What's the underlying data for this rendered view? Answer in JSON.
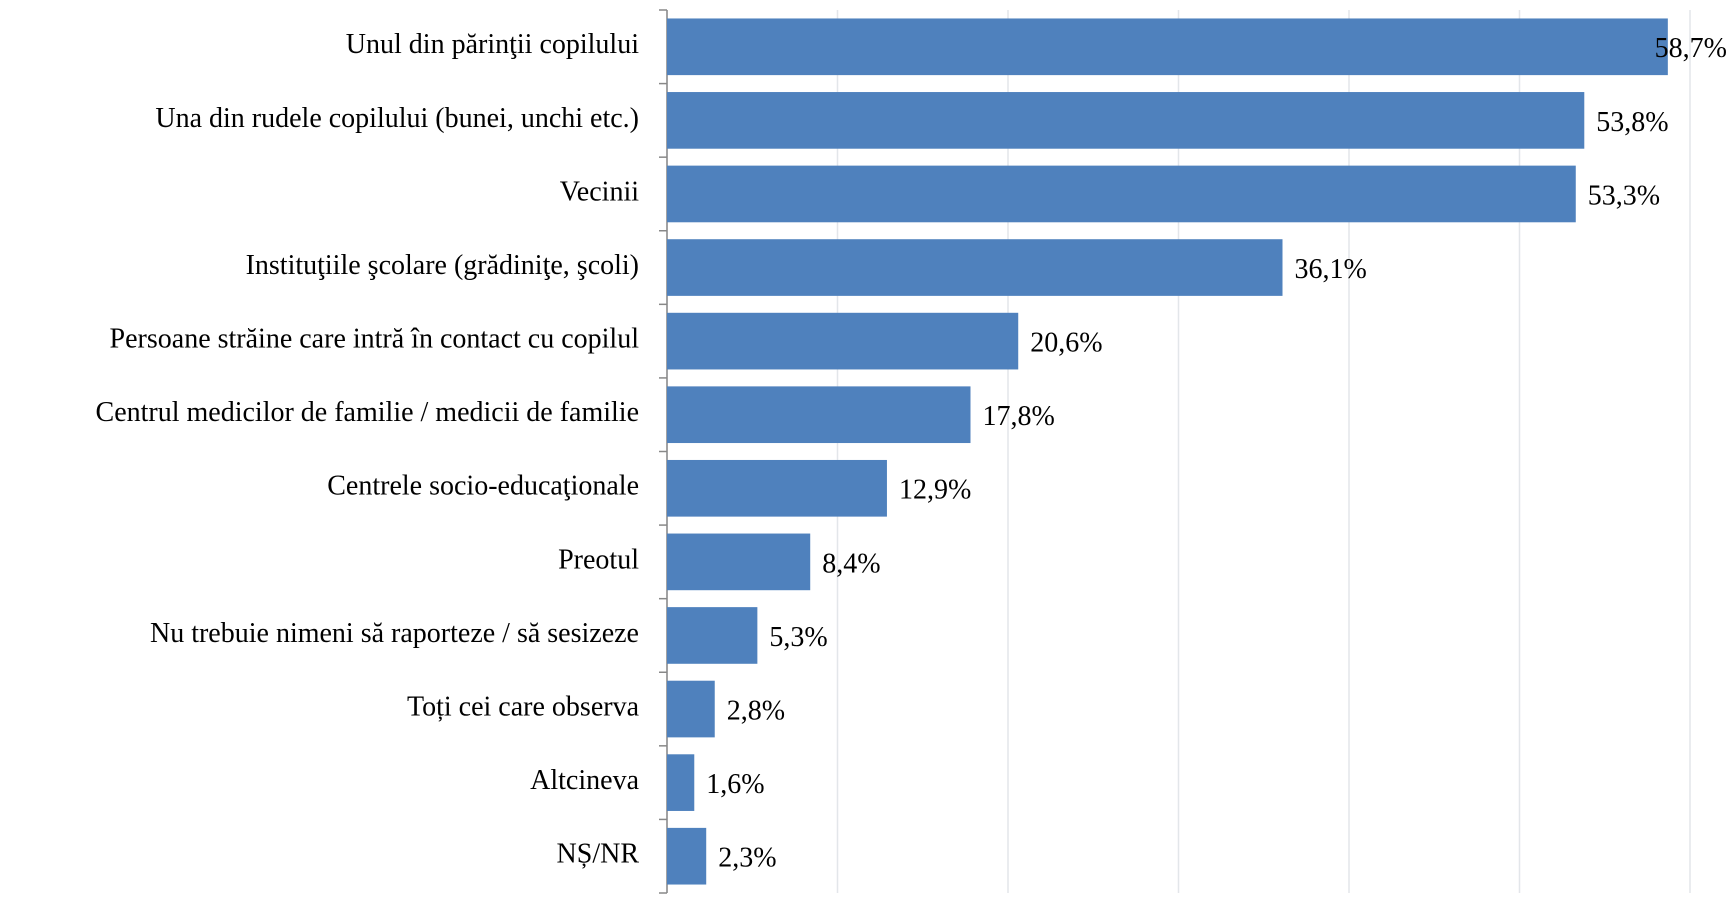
{
  "chart_data": {
    "type": "barh",
    "categories": [
      "Unul din părinţii copilului",
      "Una din rudele copilului (bunei, unchi etc.)",
      "Vecinii",
      "Instituţiile şcolare (grădiniţe, şcoli)",
      "Persoane străine care intră în contact cu copilul",
      "Centrul medicilor de familie / medicii de familie",
      "Centrele socio-educaţionale ",
      "Preotul",
      "Nu trebuie nimeni să raporteze / să sesizeze",
      "Toți cei care observa",
      "Altcineva",
      "NȘ/NR"
    ],
    "values": [
      58.7,
      53.8,
      53.3,
      36.1,
      20.6,
      17.8,
      12.9,
      8.4,
      5.3,
      2.8,
      1.6,
      2.3
    ],
    "value_labels": [
      "58,7%",
      "53,8%",
      "53,3%",
      "36,1%",
      "20,6%",
      "17,8%",
      "12,9%",
      "8,4%",
      "5,3%",
      "2,8%",
      "1,6%",
      "2,3%"
    ],
    "color": "#4f81bd",
    "xlim": [
      0,
      60
    ],
    "xticks": [
      0,
      10,
      20,
      30,
      40,
      50,
      60
    ],
    "grid": true
  }
}
